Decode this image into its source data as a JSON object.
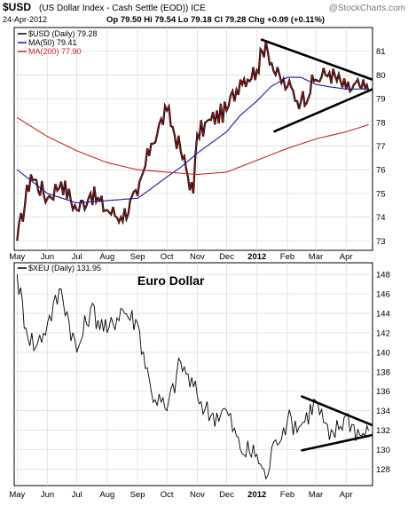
{
  "header": {
    "symbol": "$USD",
    "description": "(US Dollar Index - Cash Settle (EOD)) ICE",
    "watermark": "@StockCharts.com",
    "date": "24-Apr-2012",
    "ohlc": "Op 79.50  Hi 79.54  Lo 79.18  Cl 79.28  Chg +0.09 (+0.11%)",
    "open": "Op 79.50",
    "high": "Hi 79.54",
    "low": "Lo 79.18",
    "close": "Cl 79.28",
    "change": "Chg +0.09 (+0.11%)"
  },
  "colors": {
    "price": "#8b1a1a",
    "price_shadow": "#000000",
    "ma50": "#1a1aa0",
    "ma200": "#cc2222",
    "grid": "#d9d9d9",
    "trendline": "#000000"
  },
  "chart_data": [
    {
      "type": "line",
      "name": "USD panel",
      "legend": [
        "$USD (Daily) 79.28",
        "MA(50) 79.41",
        "MA(200) 77.90"
      ],
      "legend_position": "top-left",
      "ylim": [
        72.6,
        82.0
      ],
      "yticks": [
        73,
        74,
        75,
        76,
        77,
        78,
        79,
        80,
        81
      ],
      "grid": true,
      "series": [
        {
          "name": "$USD (Daily) 79.28",
          "x": [
            "2011-05-01",
            "2011-05-15",
            "2011-06-01",
            "2011-06-15",
            "2011-07-01",
            "2011-07-15",
            "2011-08-01",
            "2011-08-15",
            "2011-09-01",
            "2011-09-15",
            "2011-10-01",
            "2011-10-15",
            "2011-10-28",
            "2011-11-01",
            "2011-11-15",
            "2011-12-01",
            "2011-12-15",
            "2012-01-01",
            "2012-01-10",
            "2012-01-20",
            "2012-02-01",
            "2012-02-15",
            "2012-03-01",
            "2012-03-15",
            "2012-04-01",
            "2012-04-15",
            "2012-04-24"
          ],
          "values": [
            73.0,
            75.8,
            74.8,
            75.5,
            74.3,
            75.0,
            74.3,
            74.0,
            74.9,
            77.1,
            78.5,
            76.8,
            75.0,
            77.5,
            78.1,
            78.5,
            79.8,
            80.2,
            81.4,
            80.0,
            79.5,
            78.9,
            79.8,
            80.1,
            79.4,
            79.5,
            79.28
          ]
        },
        {
          "name": "MA(50) 79.41",
          "x": [
            "2011-05-01",
            "2011-06-01",
            "2011-07-01",
            "2011-08-01",
            "2011-09-01",
            "2011-09-15",
            "2011-10-01",
            "2011-10-15",
            "2011-11-01",
            "2011-12-01",
            "2011-12-15",
            "2012-01-01",
            "2012-01-15",
            "2012-02-01",
            "2012-02-15",
            "2012-03-01",
            "2012-03-15",
            "2012-04-01",
            "2012-04-24"
          ],
          "values": [
            76.0,
            75.0,
            74.6,
            74.7,
            74.8,
            75.2,
            75.7,
            76.1,
            76.7,
            77.6,
            78.3,
            78.9,
            79.5,
            79.9,
            79.9,
            79.6,
            79.5,
            79.4,
            79.41
          ]
        },
        {
          "name": "MA(200) 77.90",
          "x": [
            "2011-05-01",
            "2011-06-01",
            "2011-07-01",
            "2011-08-01",
            "2011-09-01",
            "2011-10-01",
            "2011-11-01",
            "2011-12-01",
            "2012-01-01",
            "2012-02-01",
            "2012-03-01",
            "2012-04-01",
            "2012-04-24"
          ],
          "values": [
            78.2,
            77.4,
            76.8,
            76.3,
            76.0,
            75.9,
            75.8,
            75.9,
            76.4,
            76.9,
            77.3,
            77.6,
            77.9
          ]
        }
      ],
      "trendlines": [
        {
          "x": [
            "2012-01-05",
            "2012-04-28"
          ],
          "values": [
            81.5,
            79.8
          ]
        },
        {
          "x": [
            "2012-01-18",
            "2012-04-28"
          ],
          "values": [
            77.6,
            79.4
          ]
        }
      ]
    },
    {
      "type": "line",
      "name": "XEU panel",
      "legend": [
        "$XEU (Daily) 131.95"
      ],
      "legend_position": "top-left",
      "title": "Euro Dollar",
      "ylim": [
        126.3,
        149.2
      ],
      "yticks": [
        128,
        130,
        132,
        134,
        136,
        138,
        140,
        142,
        144,
        146,
        148
      ],
      "grid": true,
      "series": [
        {
          "name": "$XEU (Daily) 131.95",
          "x": [
            "2011-05-01",
            "2011-05-10",
            "2011-05-20",
            "2011-06-01",
            "2011-06-15",
            "2011-07-01",
            "2011-07-15",
            "2011-08-01",
            "2011-08-15",
            "2011-09-01",
            "2011-09-15",
            "2011-10-01",
            "2011-10-15",
            "2011-11-01",
            "2011-11-15",
            "2011-12-01",
            "2011-12-15",
            "2012-01-01",
            "2012-01-10",
            "2012-01-20",
            "2012-02-01",
            "2012-02-15",
            "2012-03-01",
            "2012-03-15",
            "2012-04-01",
            "2012-04-15",
            "2012-04-24"
          ],
          "values": [
            148.0,
            142.5,
            140.5,
            143.0,
            146.5,
            140.0,
            144.5,
            142.0,
            144.5,
            143.0,
            136.0,
            134.0,
            139.0,
            135.5,
            133.5,
            134.0,
            130.0,
            129.5,
            127.0,
            131.0,
            133.0,
            132.5,
            135.0,
            131.0,
            133.5,
            131.5,
            131.95
          ]
        }
      ],
      "trendlines": [
        {
          "x": [
            "2012-02-15",
            "2012-04-28"
          ],
          "values": [
            135.5,
            132.5
          ]
        },
        {
          "x": [
            "2012-02-15",
            "2012-04-28"
          ],
          "values": [
            129.9,
            131.5
          ]
        }
      ]
    }
  ],
  "xaxis": {
    "labels": [
      "May",
      "Jun",
      "Jul",
      "Aug",
      "Sep",
      "Oct",
      "Nov",
      "Dec",
      "2012",
      "Feb",
      "Mar",
      "Apr"
    ],
    "dates": [
      "2011-05-01",
      "2011-06-01",
      "2011-07-01",
      "2011-08-01",
      "2011-09-01",
      "2011-10-01",
      "2011-11-01",
      "2011-12-01",
      "2012-01-01",
      "2012-02-01",
      "2012-03-01",
      "2012-04-01"
    ],
    "range": [
      "2011-04-28",
      "2012-04-28"
    ]
  }
}
